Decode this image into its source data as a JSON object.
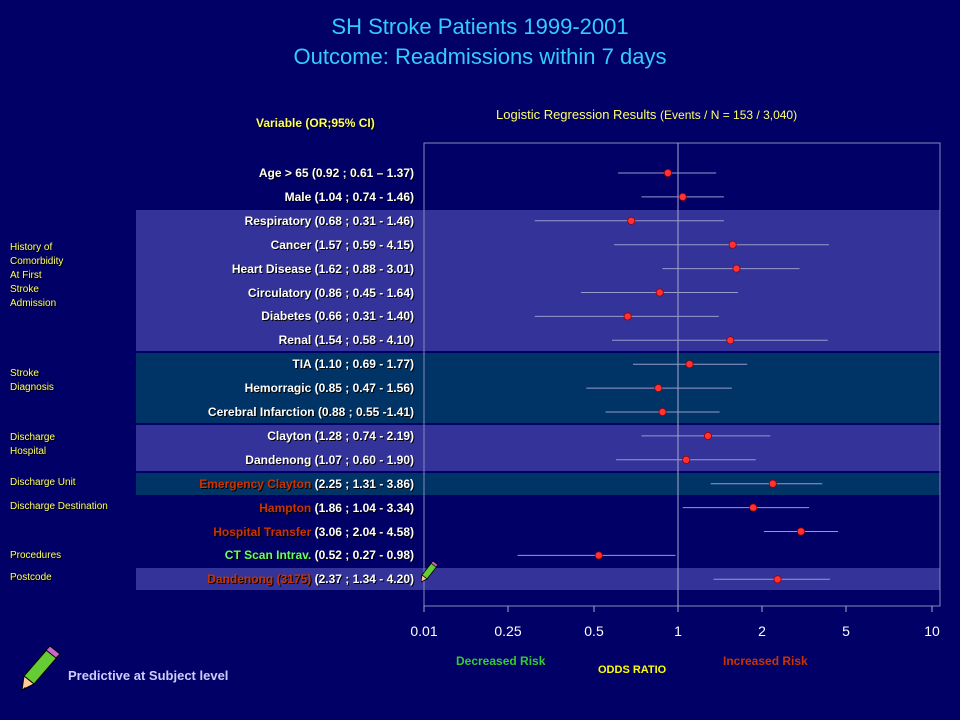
{
  "title_line1": "SH Stroke Patients 1999-2001",
  "title_line2": "Outcome: Readmissions within 7 days",
  "variable_header": "Variable (OR;95% CI)",
  "regression_header_main": "Logistic Regression Results ",
  "regression_header_events": "(Events / N = 153 / 3,040)",
  "groups": [
    {
      "label": "History of\nComorbidity\nAt First\nStroke\nAdmission"
    },
    {
      "label": "Stroke\nDiagnosis"
    },
    {
      "label": "Discharge\nHospital"
    },
    {
      "label": "Discharge Unit"
    },
    {
      "label": "Discharge Destination"
    },
    {
      "label": "Procedures"
    },
    {
      "label": "Postcode"
    }
  ],
  "colors": {
    "background": "#000066",
    "band_purple": "#333399",
    "band_teal": "#003366",
    "point": "#ff3333",
    "ci_line": "#9999cc",
    "name_red": "#cc3300",
    "name_green": "#66ff66"
  },
  "icons": {
    "pencil_large": "pencil-icon",
    "pencil_small": "pencil-icon"
  },
  "footer": {
    "decreased": "Decreased Risk",
    "increased": "Increased Risk",
    "odds_ratio": "ODDS RATIO",
    "predictive": "Predictive at Subject level"
  },
  "chart_data": {
    "type": "forest",
    "xscale": "log",
    "xlabel": "ODDS RATIO",
    "ticks": [
      {
        "value": 0.01,
        "label": "0.01"
      },
      {
        "value": 0.25,
        "label": "0.25"
      },
      {
        "value": 0.5,
        "label": "0.5"
      },
      {
        "value": 1,
        "label": "1"
      },
      {
        "value": 2,
        "label": "2"
      },
      {
        "value": 5,
        "label": "5"
      },
      {
        "value": 10,
        "label": "10"
      }
    ],
    "reference_line": 1,
    "rows": [
      {
        "name": "Age > 65",
        "stats": " (0.92 ; 0.61 – 1.37)",
        "or": 0.92,
        "lo": 0.61,
        "hi": 1.37,
        "name_color": "white",
        "band": "none"
      },
      {
        "name": "Male",
        "stats": " (1.04 ; 0.74 - 1.46)",
        "or": 1.04,
        "lo": 0.74,
        "hi": 1.46,
        "name_color": "white",
        "band": "none"
      },
      {
        "name": "Respiratory",
        "stats": " (0.68 ; 0.31 - 1.46)",
        "or": 0.68,
        "lo": 0.31,
        "hi": 1.46,
        "name_color": "white",
        "band": "purple"
      },
      {
        "name": "Cancer",
        "stats": " (1.57 ; 0.59 - 4.15)",
        "or": 1.57,
        "lo": 0.59,
        "hi": 4.15,
        "name_color": "white",
        "band": "purple"
      },
      {
        "name": "Heart Disease",
        "stats": " (1.62 ; 0.88 - 3.01)",
        "or": 1.62,
        "lo": 0.88,
        "hi": 3.01,
        "name_color": "white",
        "band": "purple"
      },
      {
        "name": "Circulatory",
        "stats": " (0.86 ; 0.45 - 1.64)",
        "or": 0.86,
        "lo": 0.45,
        "hi": 1.64,
        "name_color": "white",
        "band": "purple"
      },
      {
        "name": "Diabetes",
        "stats": " (0.66 ; 0.31 - 1.40)",
        "or": 0.66,
        "lo": 0.31,
        "hi": 1.4,
        "name_color": "white",
        "band": "purple"
      },
      {
        "name": "Renal",
        "stats": " (1.54 ; 0.58 - 4.10)",
        "or": 1.54,
        "lo": 0.58,
        "hi": 4.1,
        "name_color": "white",
        "band": "purple"
      },
      {
        "name": "TIA",
        "stats": " (1.10 ; 0.69 - 1.77)",
        "or": 1.1,
        "lo": 0.69,
        "hi": 1.77,
        "name_color": "white",
        "band": "teal"
      },
      {
        "name": "Hemorragic",
        "stats": " (0.85 ; 0.47 - 1.56)",
        "or": 0.85,
        "lo": 0.47,
        "hi": 1.56,
        "name_color": "white",
        "band": "teal"
      },
      {
        "name": "Cerebral Infarction ",
        "stats": " (0.88 ; 0.55 -1.41)",
        "or": 0.88,
        "lo": 0.55,
        "hi": 1.41,
        "name_color": "white",
        "band": "teal"
      },
      {
        "name": "Clayton ",
        "stats": " (1.28 ; 0.74 - 2.19)",
        "or": 1.28,
        "lo": 0.74,
        "hi": 2.19,
        "name_color": "white",
        "band": "purple"
      },
      {
        "name": "Dandenong ",
        "stats": " (1.07 ; 0.60 - 1.90)",
        "or": 1.07,
        "lo": 0.6,
        "hi": 1.9,
        "name_color": "white",
        "band": "purple"
      },
      {
        "name": "Emergency Clayton ",
        "stats": " (2.25 ; 1.31 - 3.86)",
        "or": 2.25,
        "lo": 1.31,
        "hi": 3.86,
        "name_color": "red",
        "band": "teal"
      },
      {
        "name": "Hampton",
        "stats": " (1.86 ; 1.04 - 3.34)",
        "or": 1.86,
        "lo": 1.04,
        "hi": 3.34,
        "name_color": "red",
        "band": "none"
      },
      {
        "name": "Hospital Transfer",
        "stats": " (3.06 ; 2.04 - 4.58)",
        "or": 3.06,
        "lo": 2.04,
        "hi": 4.58,
        "name_color": "red",
        "band": "none"
      },
      {
        "name": "CT Scan Intrav.",
        "stats": " (0.52 ; 0.27 - 0.98)",
        "or": 0.52,
        "lo": 0.27,
        "hi": 0.98,
        "name_color": "green",
        "band": "none"
      },
      {
        "name": "Dandenong (3175)",
        "stats": " (2.37 ; 1.34 - 4.20)",
        "or": 2.37,
        "lo": 1.34,
        "hi": 4.2,
        "name_color": "red",
        "band": "purple"
      }
    ]
  }
}
